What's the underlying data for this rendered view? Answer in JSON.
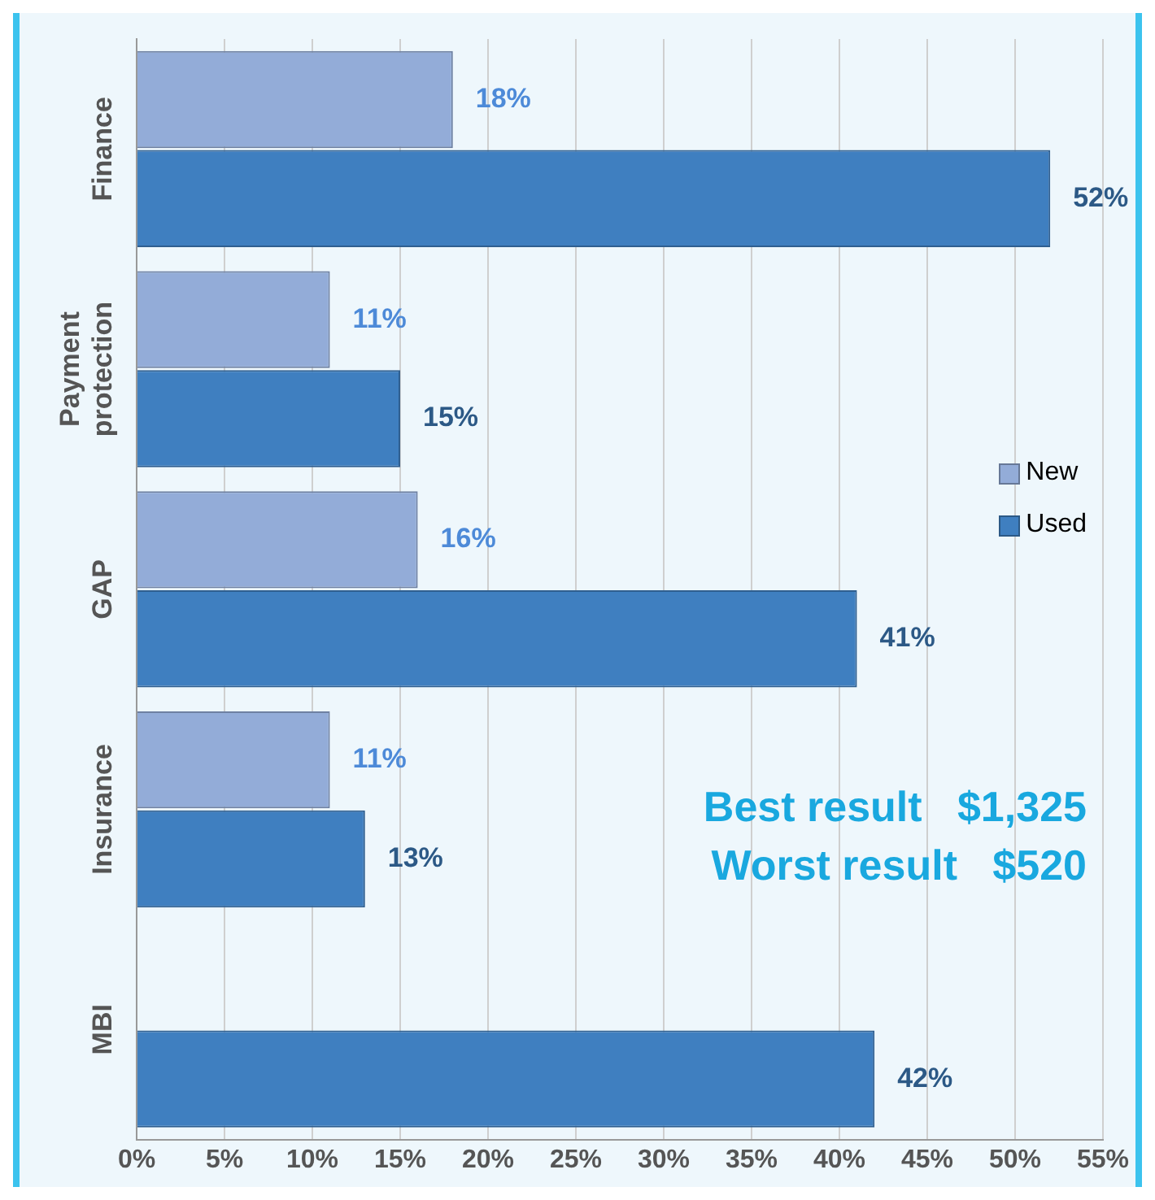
{
  "chart_data": {
    "type": "bar",
    "orientation": "horizontal",
    "categories": [
      "Finance",
      "Payment protection",
      "GAP",
      "Insurance",
      "MBI"
    ],
    "series": [
      {
        "name": "New",
        "color": "#93acd8",
        "values": [
          18,
          11,
          16,
          11,
          null
        ],
        "value_labels": [
          "18%",
          "11%",
          "16%",
          "11%",
          null
        ]
      },
      {
        "name": "Used",
        "color": "#3f7fc0",
        "values": [
          52,
          15,
          41,
          13,
          42
        ],
        "value_labels": [
          "52%",
          "15%",
          "41%",
          "13%",
          "42%"
        ]
      }
    ],
    "xlim": [
      0,
      55
    ],
    "xticks": [
      {
        "value": 0,
        "label": "0%"
      },
      {
        "value": 5,
        "label": "5%"
      },
      {
        "value": 10,
        "label": "10%"
      },
      {
        "value": 15,
        "label": "15%"
      },
      {
        "value": 20,
        "label": "20%"
      },
      {
        "value": 25,
        "label": "25%"
      },
      {
        "value": 30,
        "label": "30%"
      },
      {
        "value": 35,
        "label": "35%"
      },
      {
        "value": 40,
        "label": "40%"
      },
      {
        "value": 45,
        "label": "45%"
      },
      {
        "value": 50,
        "label": "50%"
      },
      {
        "value": 55,
        "label": "55%"
      }
    ],
    "grid": "x",
    "legend": "right",
    "annotations": [
      "Best result   $1,325",
      "Worst result   $520"
    ]
  }
}
